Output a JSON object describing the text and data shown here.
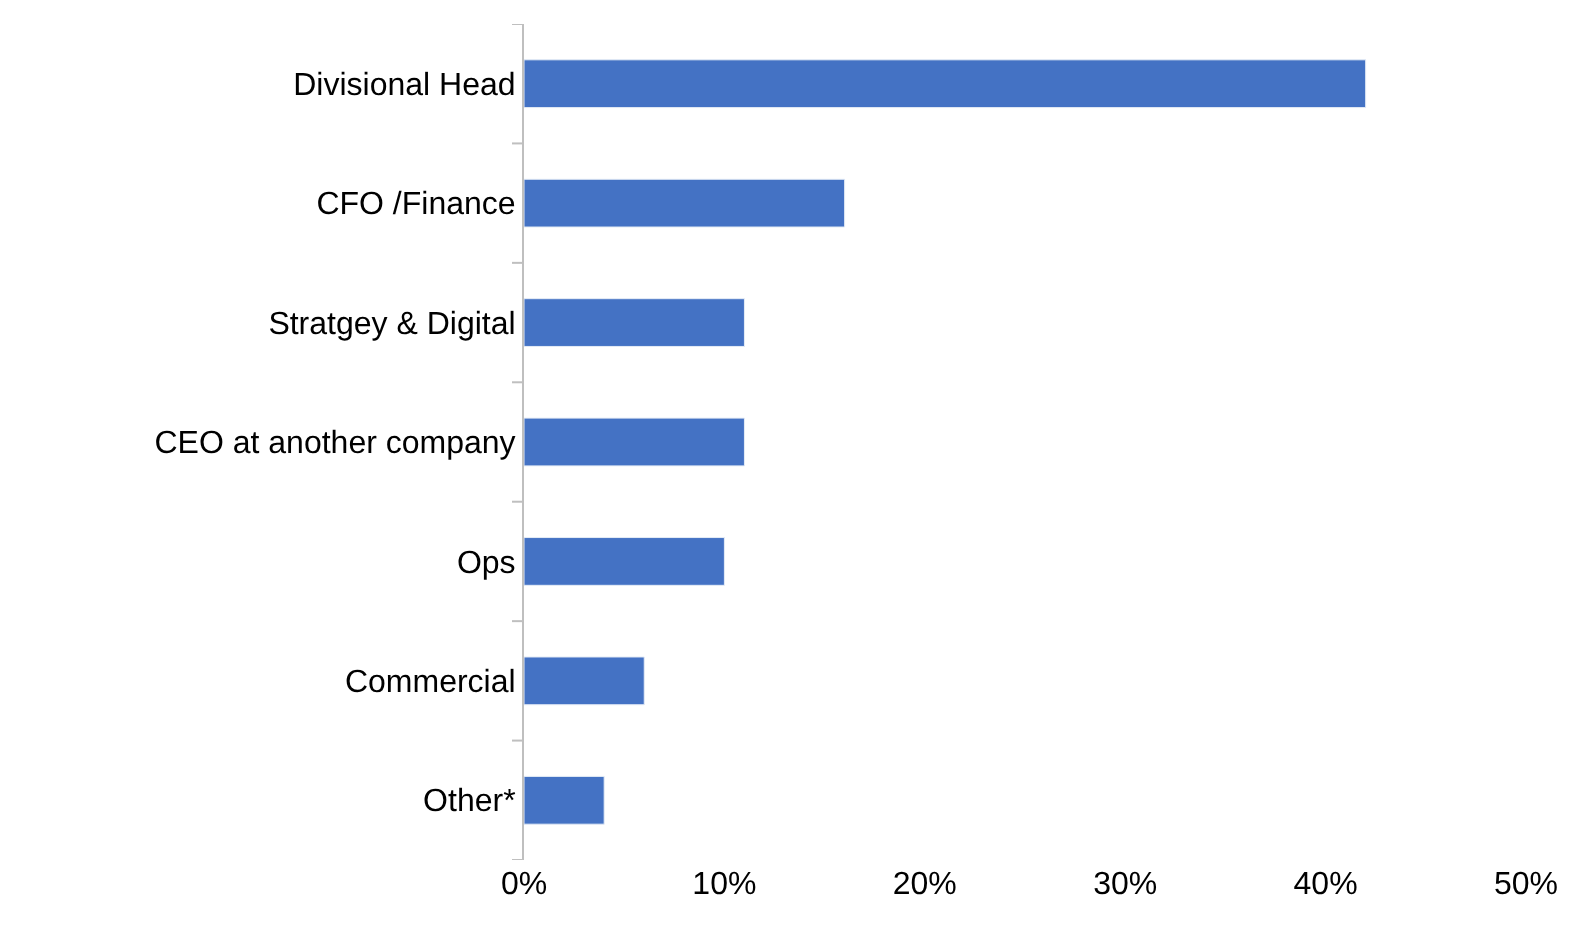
{
  "chart_data": {
    "type": "bar",
    "orientation": "horizontal",
    "categories": [
      "Divisional Head",
      "CFO /Finance",
      "Stratgey & Digital",
      "CEO at another company",
      "Ops",
      "Commercial",
      "Other*"
    ],
    "values": [
      42,
      16,
      11,
      11,
      10,
      6,
      4
    ],
    "color": "#4472c4",
    "xlim": [
      0,
      50
    ],
    "xticks": [
      {
        "value": 0,
        "label": "0%"
      },
      {
        "value": 10,
        "label": "10%"
      },
      {
        "value": 20,
        "label": "20%"
      },
      {
        "value": 30,
        "label": "30%"
      },
      {
        "value": 40,
        "label": "40%"
      },
      {
        "value": 50,
        "label": "50%"
      }
    ],
    "tick_labels": "xy"
  }
}
